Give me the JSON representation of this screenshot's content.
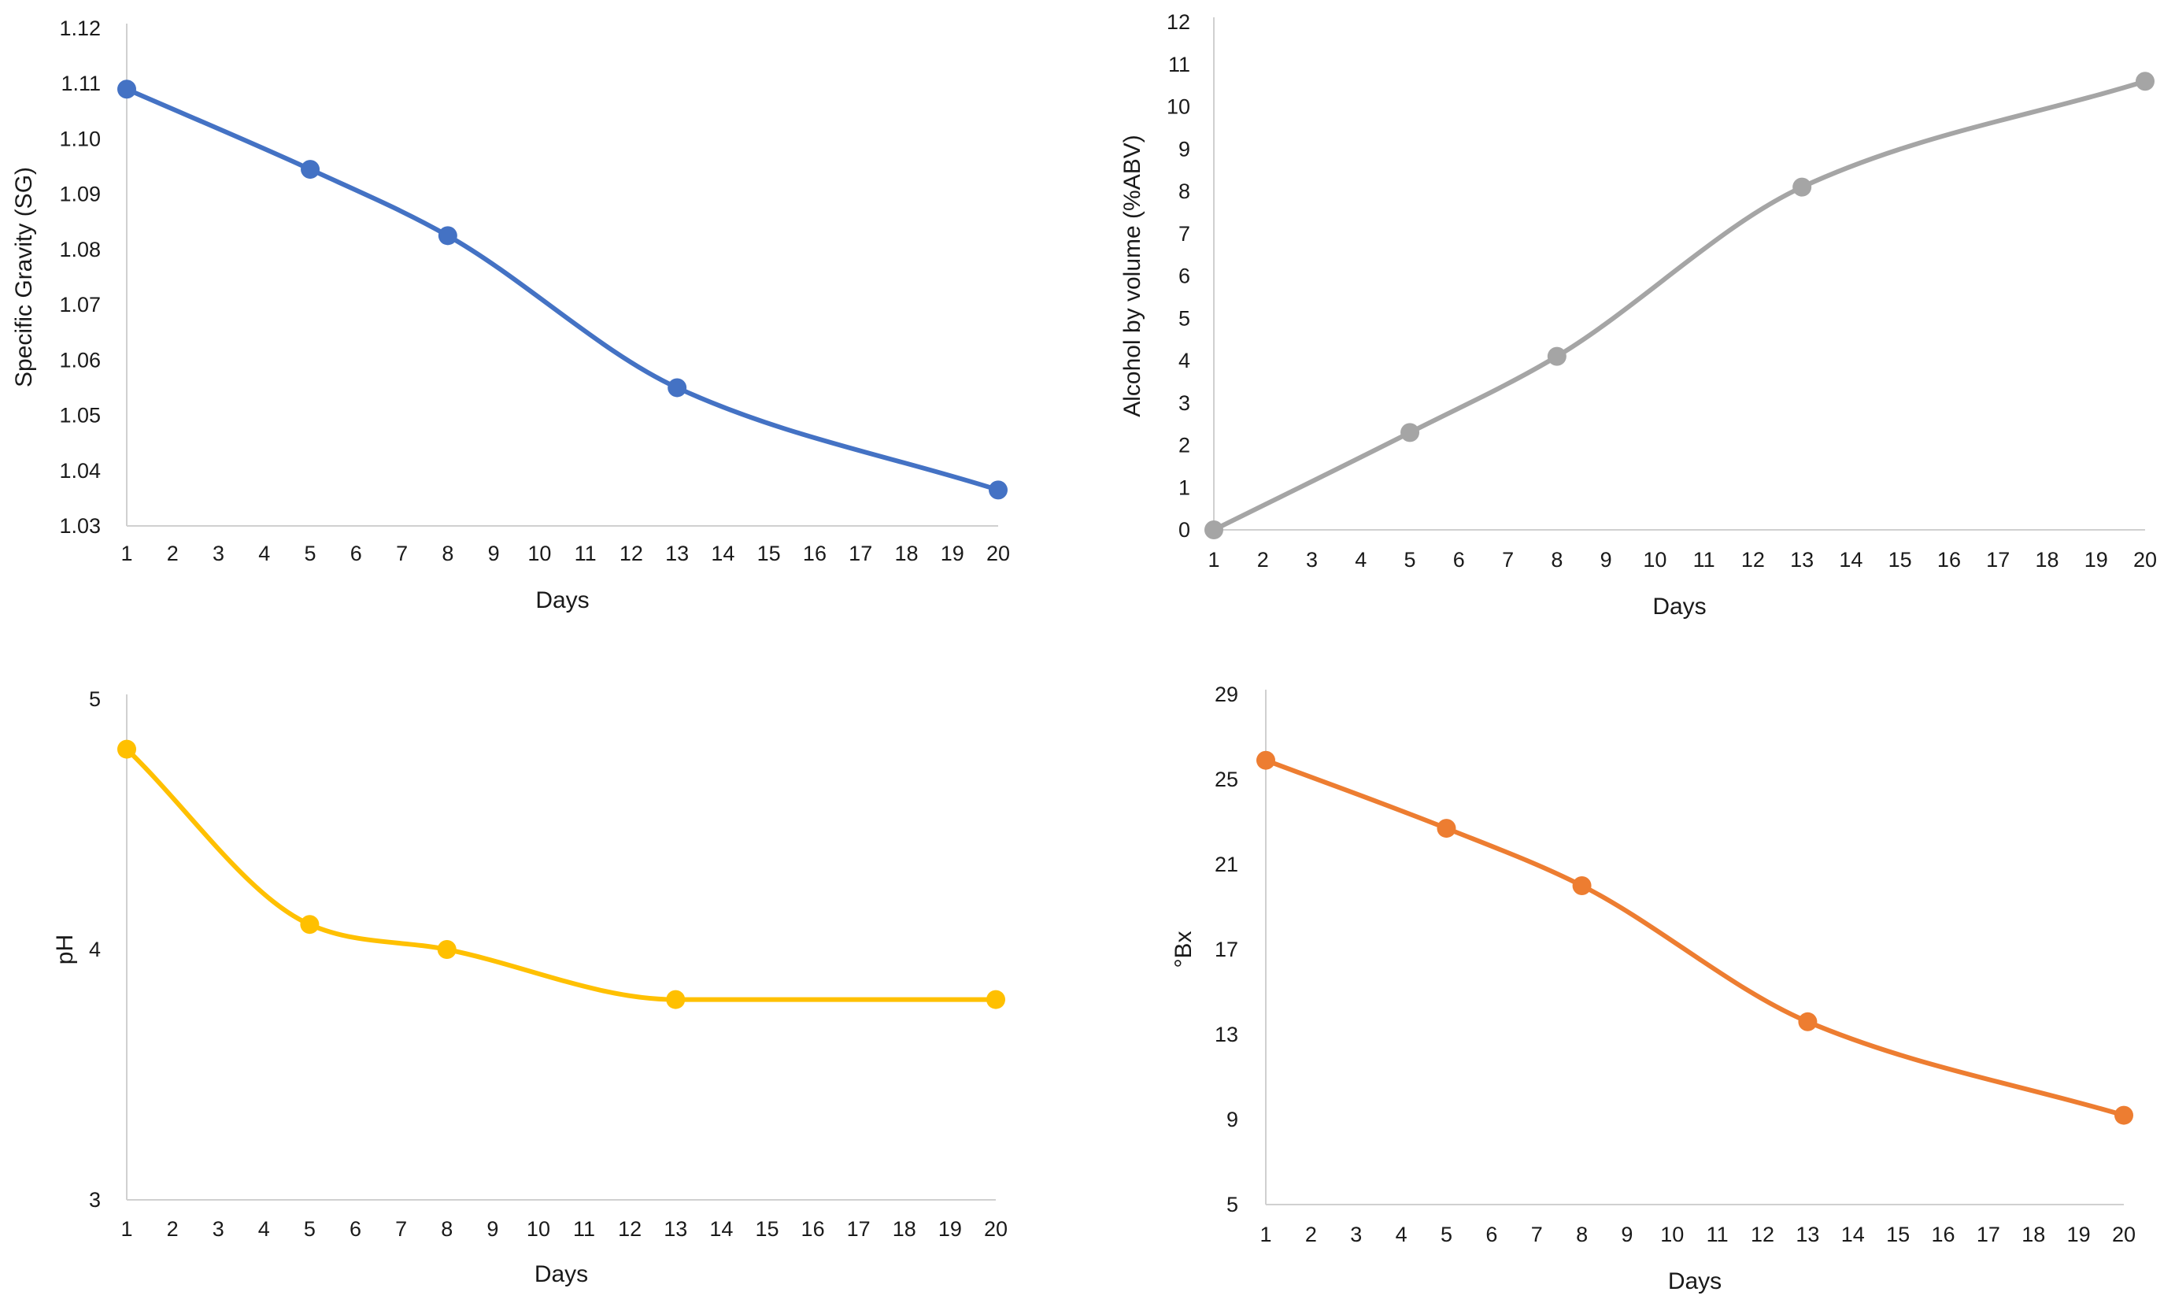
{
  "chart_data": [
    {
      "id": "sg",
      "type": "line",
      "title": "",
      "xlabel": "Days",
      "ylabel": "Specific Gravity (SG)",
      "categories": [
        "1",
        "2",
        "3",
        "4",
        "5",
        "6",
        "7",
        "8",
        "9",
        "10",
        "11",
        "12",
        "13",
        "14",
        "15",
        "16",
        "17",
        "18",
        "19",
        "20"
      ],
      "x": [
        1,
        5,
        8,
        13,
        20
      ],
      "y": [
        1.109,
        1.0945,
        1.0825,
        1.055,
        1.0365
      ],
      "ylim": [
        1.03,
        1.12
      ],
      "yticks": [
        "1.03",
        "1.04",
        "1.05",
        "1.06",
        "1.07",
        "1.08",
        "1.09",
        "1.10",
        "1.11",
        "1.12"
      ],
      "color": "#4472C4",
      "grid": false
    },
    {
      "id": "abv",
      "type": "line",
      "title": "",
      "xlabel": "Days",
      "ylabel": "Alcohol by volume (%ABV)",
      "categories": [
        "1",
        "2",
        "3",
        "4",
        "5",
        "6",
        "7",
        "8",
        "9",
        "10",
        "11",
        "12",
        "13",
        "14",
        "15",
        "16",
        "17",
        "18",
        "19",
        "20"
      ],
      "x": [
        1,
        5,
        8,
        13,
        20
      ],
      "y": [
        0,
        2.3,
        4.1,
        8.1,
        10.6
      ],
      "ylim": [
        0,
        12
      ],
      "yticks": [
        "0",
        "1",
        "2",
        "3",
        "4",
        "5",
        "6",
        "7",
        "8",
        "9",
        "10",
        "11",
        "12"
      ],
      "color": "#A5A5A5",
      "grid": false
    },
    {
      "id": "ph",
      "type": "line",
      "title": "",
      "xlabel": "Days",
      "ylabel": "pH",
      "categories": [
        "1",
        "2",
        "3",
        "4",
        "5",
        "6",
        "7",
        "8",
        "9",
        "10",
        "11",
        "12",
        "13",
        "14",
        "15",
        "16",
        "17",
        "18",
        "19",
        "20"
      ],
      "x": [
        1,
        5,
        8,
        13,
        20
      ],
      "y": [
        4.8,
        4.1,
        4.0,
        3.8,
        3.8
      ],
      "ylim": [
        3,
        5
      ],
      "yticks": [
        "3",
        "4",
        "5"
      ],
      "color": "#FFC000",
      "grid": false
    },
    {
      "id": "brix",
      "type": "line",
      "title": "",
      "xlabel": "Days",
      "ylabel": "°Bx",
      "categories": [
        "1",
        "2",
        "3",
        "4",
        "5",
        "6",
        "7",
        "8",
        "9",
        "10",
        "11",
        "12",
        "13",
        "14",
        "15",
        "16",
        "17",
        "18",
        "19",
        "20"
      ],
      "x": [
        1,
        5,
        8,
        13,
        20
      ],
      "y": [
        25.9,
        22.7,
        20.0,
        13.6,
        9.2
      ],
      "ylim": [
        5,
        29
      ],
      "yticks": [
        "5",
        "9",
        "13",
        "17",
        "21",
        "25",
        "29"
      ],
      "color": "#ED7D31",
      "grid": false
    }
  ]
}
